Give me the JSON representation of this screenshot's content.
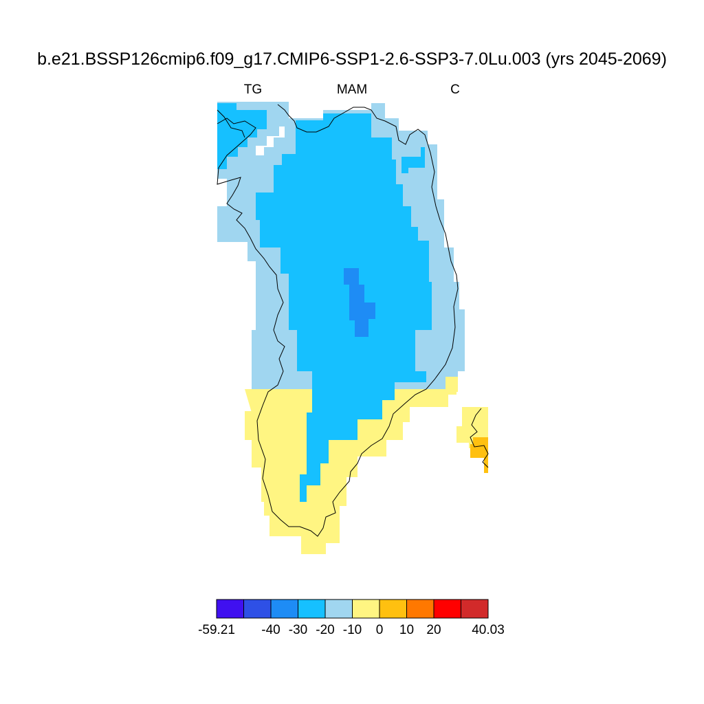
{
  "figure": {
    "title": "b.e21.BSSP126cmip6.f09_g17.CMIP6-SSP1-2.6-SSP3-7.0Lu.003 (yrs 2045-2069)",
    "left_label": "TG",
    "center_label": "MAM",
    "right_label": "C"
  },
  "colorbar": {
    "colors": [
      "#4010f0",
      "#2e50e6",
      "#1e8cf5",
      "#16c0ff",
      "#a0d6f0",
      "#fff582",
      "#ffc010",
      "#ff7800",
      "#ff0000",
      "#d22a2a"
    ],
    "labels": [
      {
        "text": "-59.21",
        "edge": 0
      },
      {
        "text": "-40",
        "edge": 2
      },
      {
        "text": "-30",
        "edge": 3
      },
      {
        "text": "-20",
        "edge": 4
      },
      {
        "text": "-10",
        "edge": 5
      },
      {
        "text": "0",
        "edge": 6
      },
      {
        "text": "10",
        "edge": 7
      },
      {
        "text": "20",
        "edge": 8
      },
      {
        "text": "40.03",
        "edge": 10
      }
    ]
  },
  "map": {
    "region": "Greenland",
    "color_bins": {
      "light_blue": "-20 to -10",
      "cyan": "-30 to -20",
      "blue": "-40 to -30",
      "yellow": "-10 to 0",
      "amber": "0 to 10"
    }
  }
}
